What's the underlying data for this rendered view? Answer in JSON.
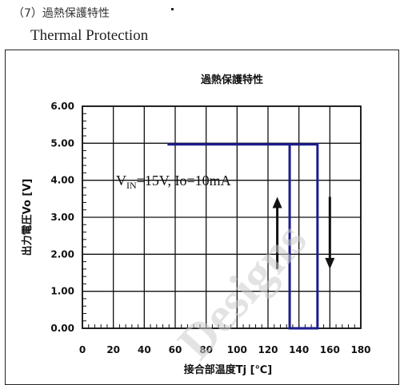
{
  "header": {
    "section_jp": "（7）過熱保護特性",
    "section_en": "Thermal Protection"
  },
  "watermark": "Designs",
  "chart_data": {
    "type": "line",
    "title": "過熱保護特性",
    "xlabel": "接合部温度Tj [℃]",
    "ylabel": "出力電圧Vo [V]",
    "x_ticks": [
      0,
      20,
      40,
      60,
      80,
      100,
      120,
      140,
      160,
      180
    ],
    "y_ticks": [
      "0.00",
      "1.00",
      "2.00",
      "3.00",
      "4.00",
      "5.00",
      "6.00"
    ],
    "xlim": [
      0,
      180
    ],
    "ylim": [
      0,
      6
    ],
    "grid": true,
    "annotation": {
      "prefix": "V",
      "subscript": "IN",
      "suffix": "=15V, Io=10mA"
    },
    "series": [
      {
        "color": "#1c1c8c",
        "x": [
          55,
          152,
          152,
          134,
          134
        ],
        "y": [
          4.97,
          4.97,
          0.0,
          0.0,
          4.97
        ]
      }
    ],
    "arrows": [
      {
        "direction": "up",
        "x": 126,
        "y_from": 1.6,
        "y_to": 3.55
      },
      {
        "direction": "down",
        "x": 160,
        "y_from": 3.55,
        "y_to": 1.6
      }
    ]
  }
}
